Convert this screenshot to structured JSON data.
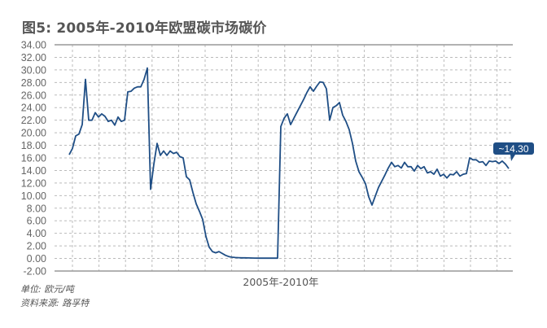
{
  "title": "图5: 2005年-2010年欧盟碳市场碳价",
  "notes": {
    "unit": "单位: 欧元/吨",
    "source": "资料来源: 路孚特"
  },
  "chart_data": {
    "type": "line",
    "title": "图5: 2005年-2010年欧盟碳市场碳价",
    "xlabel": "2005年-2010年",
    "ylabel": "",
    "ylim": [
      -2,
      34
    ],
    "yticks": [
      "-2.00",
      "0.00",
      "2.00",
      "4.00",
      "6.00",
      "8.00",
      "10.00",
      "12.00",
      "14.00",
      "16.00",
      "18.00",
      "20.00",
      "22.00",
      "24.00",
      "26.00",
      "28.00",
      "30.00",
      "32.00",
      "34.00"
    ],
    "grid": true,
    "line_color": "#1f4e85",
    "annotation": {
      "label": "~14.30",
      "value": 14.3
    },
    "series": [
      {
        "values": [
          16.5,
          17.5,
          19.5,
          19.8,
          21.3,
          28.5,
          22,
          22,
          23.2,
          22.5,
          23,
          22.6,
          21.8,
          22,
          21.2,
          22.5,
          21.8,
          22,
          26.5,
          26.6,
          27.1,
          27.3,
          27.3,
          28.5,
          30.3,
          11,
          15,
          18.3,
          16.4,
          17.1,
          16.4,
          17.1,
          16.7,
          16.9,
          16.2,
          16,
          13,
          12.5,
          10.5,
          8.7,
          7.5,
          6.2,
          3.5,
          1.8,
          1.1,
          0.9,
          1.1,
          0.8,
          0.5,
          0.3,
          0.2,
          0.15,
          0.12,
          0.1,
          0.1,
          0.08,
          0.07,
          0.06,
          0.05,
          0.05,
          0.05,
          0.05,
          0.05,
          0.05,
          0.05,
          21,
          22.3,
          23,
          21.3,
          22.3,
          23.3,
          24.3,
          25.3,
          26.4,
          27.3,
          26.6,
          27.4,
          28.1,
          28,
          27,
          22,
          24,
          24.3,
          24.8,
          22.8,
          21.8,
          20.5,
          18.3,
          15.5,
          13.8,
          12.9,
          11.9,
          9.8,
          8.5,
          9.9,
          11.3,
          12.3,
          13.3,
          14.4,
          15.3,
          14.6,
          14.8,
          14.4,
          15.3,
          14.6,
          14.6,
          13.9,
          14.8,
          14.3,
          14.6,
          13.6,
          13.8,
          13.4,
          14.2,
          13.1,
          13.4,
          12.8,
          13.4,
          13.3,
          13.8,
          13.1,
          13.4,
          13.5,
          16,
          15.7,
          15.7,
          15.3,
          15.4,
          14.8,
          15.5,
          15.4,
          15.5,
          15.1,
          15.5,
          15,
          14.3
        ]
      }
    ]
  }
}
